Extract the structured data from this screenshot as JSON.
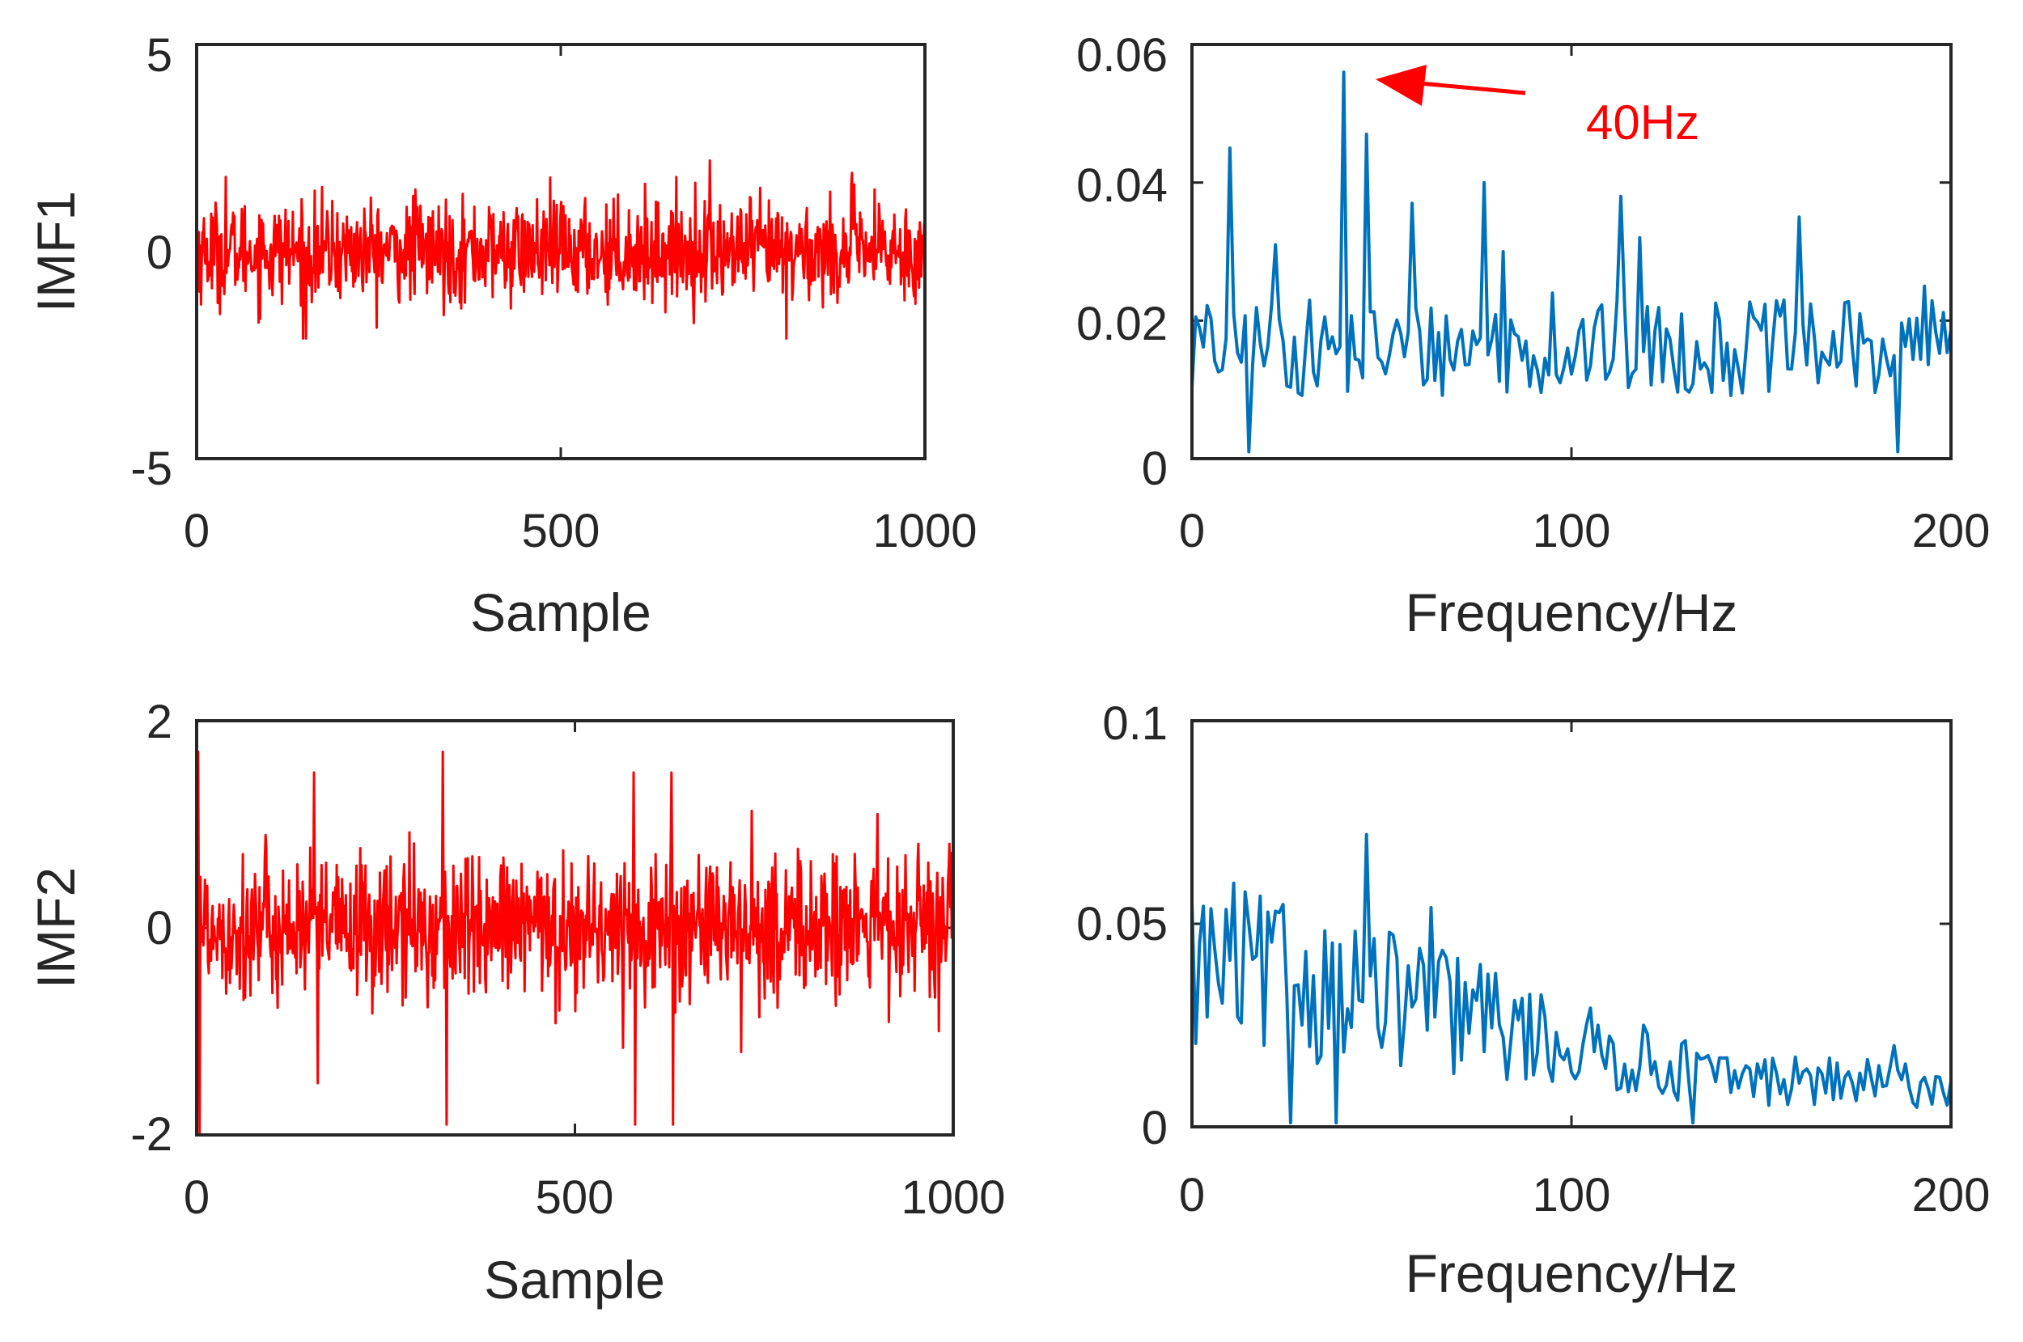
{
  "chart_data": [
    {
      "id": "imf1-time",
      "type": "line",
      "xlabel": "Sample",
      "ylabel": "IMF1",
      "xlim": [
        0,
        1000
      ],
      "ylim": [
        -5,
        5
      ],
      "xticks": [
        "0",
        "500",
        "1000"
      ],
      "yticks": [
        "-5",
        "0",
        "5"
      ],
      "series": [
        {
          "name": "IMF1",
          "color": "#ff0000",
          "n": 1000,
          "rms": 0.6,
          "spikes": [
            [
              40,
              1.8
            ],
            [
              150,
              -2.1
            ],
            [
              300,
              1.5
            ],
            [
              500,
              1.2
            ],
            [
              705,
              2.2
            ],
            [
              810,
              -2.1
            ],
            [
              900,
              1.9
            ]
          ]
        }
      ]
    },
    {
      "id": "imf1-spectrum",
      "type": "line",
      "xlabel": "Frequency/Hz",
      "ylabel": "",
      "xlim": [
        0,
        200
      ],
      "ylim": [
        0,
        0.06
      ],
      "xticks": [
        "0",
        "100",
        "200"
      ],
      "yticks": [
        "0",
        "0.02",
        "0.04",
        "0.06"
      ],
      "annotation": {
        "text": "40Hz",
        "target": [
          48,
          0.055
        ],
        "label_at": [
          110,
          0.05
        ],
        "color": "#ff0000"
      },
      "series": [
        {
          "name": "IMF1 spectrum",
          "color": "#0072bd",
          "n": 200,
          "base": 0.016,
          "spread": 0.007,
          "peaks": [
            [
              10,
              0.045
            ],
            [
              22,
              0.031
            ],
            [
              40,
              0.056
            ],
            [
              46,
              0.047
            ],
            [
              58,
              0.037
            ],
            [
              77,
              0.04
            ],
            [
              82,
              0.03
            ],
            [
              95,
              0.024
            ],
            [
              113,
              0.038
            ],
            [
              118,
              0.032
            ],
            [
              160,
              0.035
            ],
            [
              193,
              0.025
            ]
          ],
          "dips": [
            [
              15,
              0.001
            ],
            [
              186,
              0.001
            ]
          ]
        }
      ]
    },
    {
      "id": "imf2-time",
      "type": "line",
      "xlabel": "Sample",
      "ylabel": "IMF2",
      "xlim": [
        0,
        1000
      ],
      "ylim": [
        -2,
        2
      ],
      "xticks": [
        "0",
        "500",
        "1000"
      ],
      "yticks": [
        "-2",
        "0",
        "2"
      ],
      "series": [
        {
          "name": "IMF2",
          "color": "#ff0000",
          "n": 1000,
          "rms": 0.35,
          "spikes": [
            [
              2,
              1.7
            ],
            [
              4,
              -2.0
            ],
            [
              155,
              1.5
            ],
            [
              160,
              -1.5
            ],
            [
              325,
              1.7
            ],
            [
              330,
              -1.9
            ],
            [
              578,
              1.5
            ],
            [
              580,
              -1.9
            ],
            [
              628,
              1.5
            ],
            [
              630,
              -1.9
            ],
            [
              720,
              -1.2
            ],
            [
              900,
              1.1
            ]
          ]
        }
      ]
    },
    {
      "id": "imf2-spectrum",
      "type": "line",
      "xlabel": "Frequency/Hz",
      "ylabel": "",
      "xlim": [
        0,
        200
      ],
      "ylim": [
        0,
        0.1
      ],
      "xticks": [
        "0",
        "100",
        "200"
      ],
      "yticks": [
        "0",
        "0.05",
        "0.1"
      ],
      "series": [
        {
          "name": "IMF2 spectrum",
          "color": "#0072bd",
          "n": 200,
          "trend": [
            [
              0,
              0.04
            ],
            [
              60,
              0.03
            ],
            [
              100,
              0.02
            ],
            [
              140,
              0.012
            ],
            [
              200,
              0.01
            ]
          ],
          "peaks": [
            [
              11,
              0.06
            ],
            [
              46,
              0.072
            ],
            [
              63,
              0.054
            ],
            [
              76,
              0.04
            ],
            [
              185,
              0.02
            ]
          ],
          "dips": [
            [
              26,
              0.001
            ],
            [
              38,
              0.001
            ],
            [
              132,
              0.001
            ]
          ]
        }
      ]
    }
  ]
}
